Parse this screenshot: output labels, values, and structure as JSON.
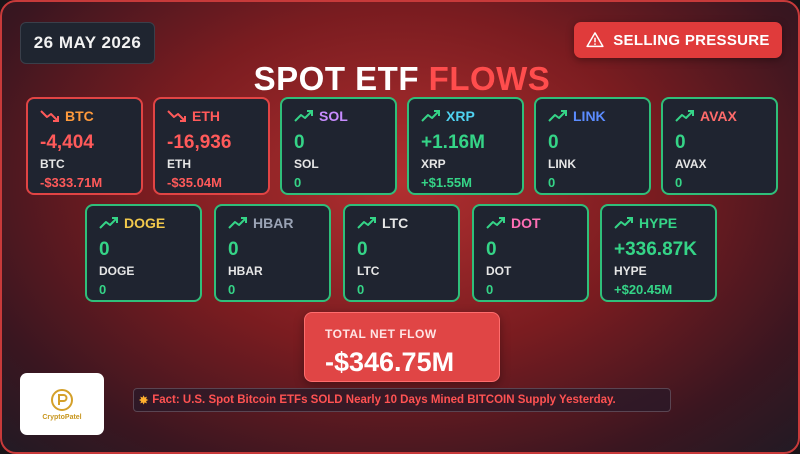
{
  "header": {
    "date": "26 MAY 2026",
    "alert_label": "SELLING PRESSURE",
    "alert_icon": "warning-triangle-icon",
    "title_white": "SPOT ETF",
    "title_red": "FLOWS"
  },
  "colors": {
    "inflow": "#35d487",
    "outflow": "#ff5a5a",
    "alert": "#e03b3b"
  },
  "assets": [
    {
      "symbol": "BTC",
      "flow": "-4,404",
      "ticker": "BTC",
      "usd": "-$333.71M",
      "direction": "down",
      "symbol_color": "#ff9a3c"
    },
    {
      "symbol": "ETH",
      "flow": "-16,936",
      "ticker": "ETH",
      "usd": "-$35.04M",
      "direction": "down",
      "symbol_color": "#ff5a5a"
    },
    {
      "symbol": "SOL",
      "flow": "0",
      "ticker": "SOL",
      "usd": "0",
      "direction": "up",
      "symbol_color": "#c88cff"
    },
    {
      "symbol": "XRP",
      "flow": "+1.16M",
      "ticker": "XRP",
      "usd": "+$1.55M",
      "direction": "up",
      "symbol_color": "#4fd2f0"
    },
    {
      "symbol": "LINK",
      "flow": "0",
      "ticker": "LINK",
      "usd": "0",
      "direction": "up",
      "symbol_color": "#5b8cff"
    },
    {
      "symbol": "AVAX",
      "flow": "0",
      "ticker": "AVAX",
      "usd": "0",
      "direction": "up",
      "symbol_color": "#ff6b6b"
    },
    {
      "symbol": "DOGE",
      "flow": "0",
      "ticker": "DOGE",
      "usd": "0",
      "direction": "up",
      "symbol_color": "#f2c94c"
    },
    {
      "symbol": "HBAR",
      "flow": "0",
      "ticker": "HBAR",
      "usd": "0",
      "direction": "up",
      "symbol_color": "#9aa3b5"
    },
    {
      "symbol": "LTC",
      "flow": "0",
      "ticker": "LTC",
      "usd": "0",
      "direction": "up",
      "symbol_color": "#e6e6e6"
    },
    {
      "symbol": "DOT",
      "flow": "0",
      "ticker": "DOT",
      "usd": "0",
      "direction": "up",
      "symbol_color": "#ff6fb5"
    },
    {
      "symbol": "HYPE",
      "flow": "+336.87K",
      "ticker": "HYPE",
      "usd": "+$20.45M",
      "direction": "up",
      "symbol_color": "#35d487"
    }
  ],
  "total": {
    "label": "TOTAL NET FLOW",
    "value": "-$346.75M"
  },
  "logo": {
    "brand": "CryptoPatel"
  },
  "fact": {
    "icon": "burst-icon",
    "text": "Fact: U.S. Spot Bitcoin ETFs SOLD Nearly 10 Days Mined BITCOIN Supply Yesterday."
  }
}
